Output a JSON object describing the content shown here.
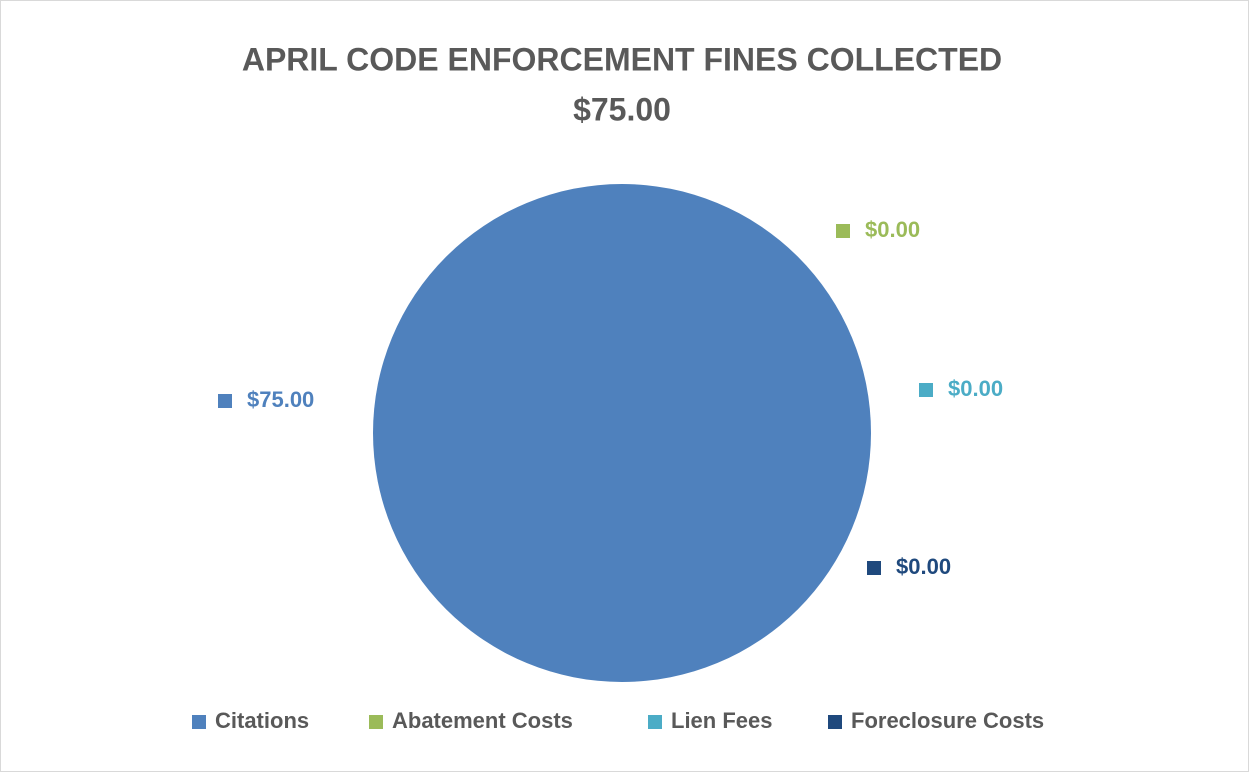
{
  "chart_data": {
    "type": "pie",
    "title": "APRIL CODE ENFORCEMENT FINES COLLECTED",
    "subtitle": "$75.00",
    "categories": [
      "Citations",
      "Abatement Costs",
      "Lien Fees",
      "Foreclosure Costs"
    ],
    "values": [
      75,
      0,
      0,
      0
    ],
    "value_labels": [
      "$75.00",
      "$0.00",
      "$0.00",
      "$0.00"
    ],
    "colors": [
      "#4f81bd",
      "#9bbb59",
      "#4bacc6",
      "#1f497d"
    ],
    "legend": "bottom"
  }
}
